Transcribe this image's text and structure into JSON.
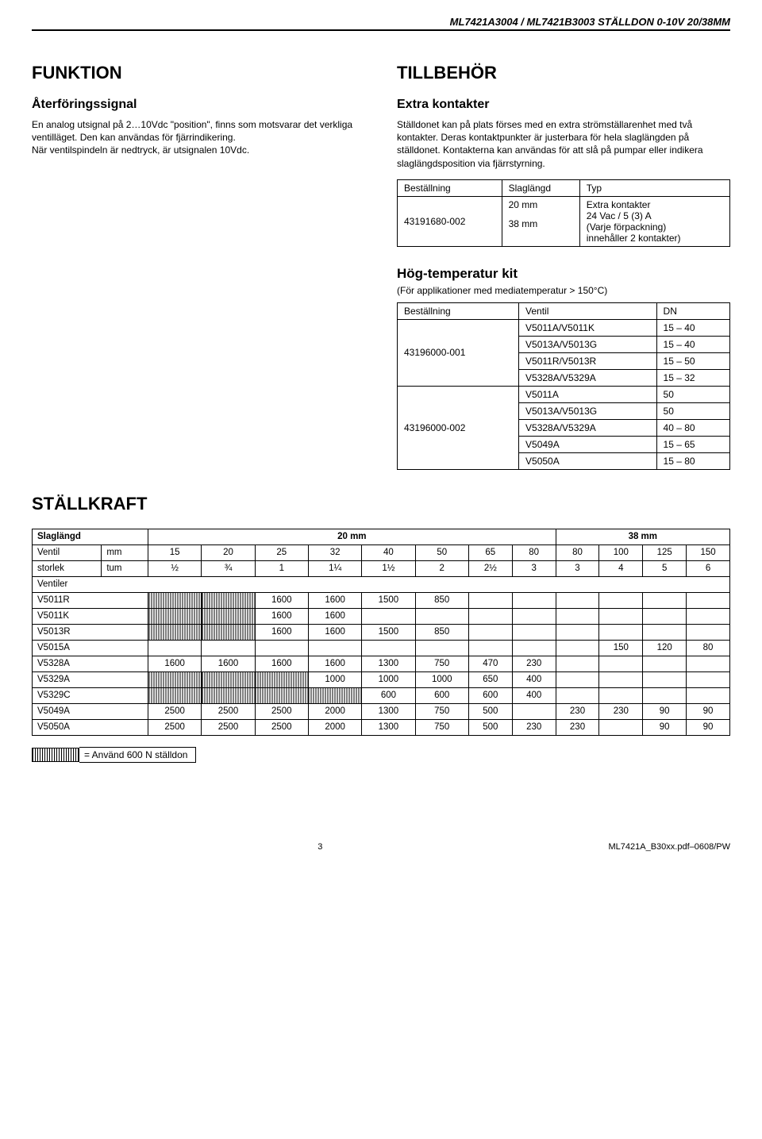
{
  "header": "ML7421A3004 / ML7421B3003 STÄLLDON 0-10V 20/38MM",
  "left": {
    "section": "FUNKTION",
    "sub": "Återföringssignal",
    "para": "En analog utsignal på 2…10Vdc \"position\", finns som motsvarar det verkliga ventilläget. Den kan användas för fjärrindikering.\nNär ventilspindeln är nedtryck, är utsignalen 10Vdc."
  },
  "right": {
    "section": "TILLBEHÖR",
    "sub": "Extra kontakter",
    "para": "Ställdonet kan på plats förses med en extra strömställarenhet med två kontakter. Deras kontaktpunkter är justerbara för hela slaglängden på ställdonet. Kontakterna kan användas för att slå på pumpar eller indikera slaglängdsposition via fjärrstyrning."
  },
  "orderTable": {
    "headers": [
      "Beställning",
      "Slaglängd",
      "Typ"
    ],
    "order": "43191680-002",
    "slag1": "20 mm",
    "slag2": "38 mm",
    "typ": "Extra kontakter\n24 Vac / 5 (3) A\n(Varje förpackning)\ninnehåller 2 kontakter)"
  },
  "ht": {
    "heading": "Hög-temperatur kit",
    "sub": "(För applikationer med mediatemperatur > 150°C)",
    "headers": [
      "Beställning",
      "Ventil",
      "DN"
    ],
    "rows": [
      {
        "order": "43196000-001",
        "items": [
          {
            "v": "V5011A/V5011K",
            "dn": "15 – 40"
          },
          {
            "v": "V5013A/V5013G",
            "dn": "15 – 40"
          },
          {
            "v": "V5011R/V5013R",
            "dn": "15 – 50"
          },
          {
            "v": "V5328A/V5329A",
            "dn": "15 – 32"
          }
        ]
      },
      {
        "order": "43196000-002",
        "items": [
          {
            "v": "V5011A",
            "dn": "50"
          },
          {
            "v": "V5013A/V5013G",
            "dn": "50"
          },
          {
            "v": "V5328A/V5329A",
            "dn": "40 – 80"
          },
          {
            "v": "V5049A",
            "dn": "15 – 65"
          },
          {
            "v": "V5050A",
            "dn": "15 – 80"
          }
        ]
      }
    ]
  },
  "stallkraft": {
    "section": "STÄLLKRAFT",
    "slagHeader": "Slaglängd",
    "slag20": "20 mm",
    "slag38": "38 mm",
    "ventilLabel": "Ventil",
    "storlekLabel": "storlek",
    "mmLabel": "mm",
    "tumLabel": "tum",
    "ventilerLabel": "Ventiler",
    "mm": [
      "15",
      "20",
      "25",
      "32",
      "40",
      "50",
      "65",
      "80",
      "80",
      "100",
      "125",
      "150"
    ],
    "tum": [
      "½",
      "¾",
      "1",
      "1¼",
      "1½",
      "2",
      "2½",
      "3",
      "3",
      "4",
      "5",
      "6"
    ],
    "rows": [
      {
        "name": "V5011R",
        "cells": [
          "H",
          "H",
          "1600",
          "1600",
          "1500",
          "850",
          "",
          "",
          "",
          "",
          "",
          ""
        ]
      },
      {
        "name": "V5011K",
        "cells": [
          "H",
          "H",
          "1600",
          "1600",
          "",
          "",
          "",
          "",
          "",
          "",
          "",
          ""
        ]
      },
      {
        "name": "V5013R",
        "cells": [
          "H",
          "H",
          "1600",
          "1600",
          "1500",
          "850",
          "",
          "",
          "",
          "",
          "",
          ""
        ]
      },
      {
        "name": "V5015A",
        "cells": [
          "",
          "",
          "",
          "",
          "",
          "",
          "",
          "",
          "",
          "150",
          "120",
          "80"
        ]
      },
      {
        "name": "V5328A",
        "cells": [
          "1600",
          "1600",
          "1600",
          "1600",
          "1300",
          "750",
          "470",
          "230",
          "",
          "",
          "",
          ""
        ]
      },
      {
        "name": "V5329A",
        "cells": [
          "H",
          "H",
          "H",
          "1000",
          "1000",
          "1000",
          "650",
          "400",
          "",
          "",
          "",
          ""
        ]
      },
      {
        "name": "V5329C",
        "cells": [
          "H",
          "H",
          "H",
          "H",
          "600",
          "600",
          "600",
          "400",
          "",
          "",
          "",
          ""
        ]
      },
      {
        "name": "V5049A",
        "cells": [
          "2500",
          "2500",
          "2500",
          "2000",
          "1300",
          "750",
          "500",
          "",
          "230",
          "230",
          "90",
          "90"
        ]
      },
      {
        "name": "V5050A",
        "cells": [
          "2500",
          "2500",
          "2500",
          "2000",
          "1300",
          "750",
          "500",
          "230",
          "230",
          "",
          "90",
          "90"
        ]
      }
    ],
    "legend": "= Använd 600 N ställdon"
  },
  "footer": {
    "page": "3",
    "ref": "ML7421A_B30xx.pdf–0608/PW"
  }
}
